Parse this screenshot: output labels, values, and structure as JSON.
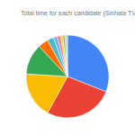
{
  "chart_data": {
    "type": "pie",
    "title": "Total time for each candidate (Sinhala TV)",
    "values": [
      31,
      27,
      18,
      12,
      4,
      2.5,
      1.5,
      1.2,
      1,
      0.8,
      0.6,
      0.4
    ],
    "colors": [
      "#4285f4",
      "#ea4335",
      "#fbbc04",
      "#34a853",
      "#ff6d01",
      "#46bdc6",
      "#7baaf7",
      "#f07b72",
      "#fcd04f",
      "#71c287",
      "#ff994d",
      "#7ed1d7"
    ]
  }
}
